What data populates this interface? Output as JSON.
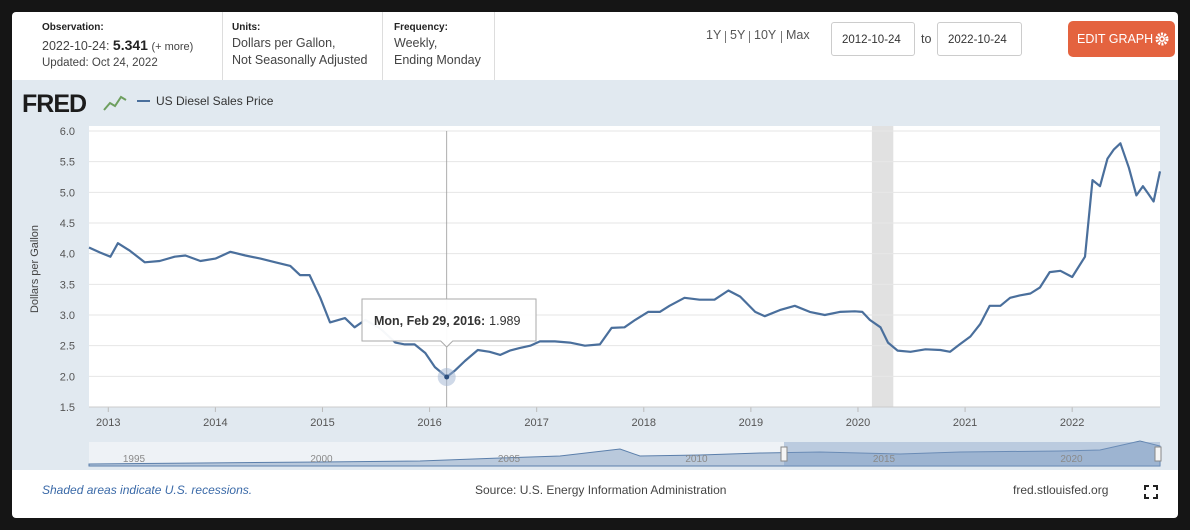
{
  "header": {
    "observation_label": "Observation:",
    "observation_date": "2022-10-24:",
    "more": "(+ more)",
    "updated": "Updated: Oct 24, 2022",
    "units_label": "Units:",
    "units_line1": "Dollars per Gallon,",
    "units_line2": "Not Seasonally Adjusted",
    "frequency_label": "Frequency:",
    "frequency_line1": "Weekly,",
    "frequency_line2": "Ending Monday",
    "ranges": [
      "1Y",
      "5Y",
      "10Y",
      "Max"
    ],
    "date_from": "2012-10-24",
    "to": "to",
    "date_to": "2022-10-24",
    "edit_button": "EDIT GRAPH"
  },
  "logo": "FRED",
  "chart_data": {
    "type": "line",
    "ylabel": "Dollars per Gallon",
    "x": [
      2012.82,
      2012.92,
      2013.02,
      2013.09,
      2013.2,
      2013.34,
      2013.48,
      2013.62,
      2013.72,
      2013.86,
      2014.0,
      2014.14,
      2014.28,
      2014.42,
      2014.56,
      2014.7,
      2014.79,
      2014.88,
      2014.98,
      2015.07,
      2015.21,
      2015.3,
      2015.4,
      2015.54,
      2015.68,
      2015.77,
      2015.86,
      2015.96,
      2016.05,
      2016.16,
      2016.24,
      2016.33,
      2016.45,
      2016.56,
      2016.66,
      2016.75,
      2016.84,
      2016.94,
      2017.03,
      2017.17,
      2017.31,
      2017.45,
      2017.59,
      2017.7,
      2017.82,
      2017.92,
      2018.04,
      2018.15,
      2018.24,
      2018.38,
      2018.52,
      2018.66,
      2018.79,
      2018.9,
      2019.04,
      2019.13,
      2019.27,
      2019.41,
      2019.55,
      2019.69,
      2019.83,
      2019.97,
      2020.04,
      2020.11,
      2020.21,
      2020.28,
      2020.37,
      2020.49,
      2020.63,
      2020.77,
      2020.86,
      2020.95,
      2021.05,
      2021.14,
      2021.23,
      2021.33,
      2021.42,
      2021.51,
      2021.61,
      2021.7,
      2021.79,
      2021.89,
      2022.0,
      2022.12,
      2022.19,
      2022.26,
      2022.33,
      2022.39,
      2022.45,
      2022.53,
      2022.6,
      2022.66,
      2022.71,
      2022.76,
      2022.82
    ],
    "series": [
      {
        "name": "US Diesel Sales Price",
        "color": "#4a6f9c",
        "values": [
          4.1,
          4.02,
          3.95,
          4.17,
          4.05,
          3.86,
          3.88,
          3.95,
          3.97,
          3.88,
          3.92,
          4.03,
          3.97,
          3.92,
          3.86,
          3.8,
          3.65,
          3.65,
          3.28,
          2.88,
          2.95,
          2.8,
          2.92,
          2.78,
          2.55,
          2.52,
          2.52,
          2.38,
          2.15,
          1.989,
          2.1,
          2.25,
          2.43,
          2.4,
          2.35,
          2.42,
          2.46,
          2.5,
          2.57,
          2.57,
          2.55,
          2.5,
          2.52,
          2.79,
          2.8,
          2.92,
          3.05,
          3.05,
          3.15,
          3.28,
          3.25,
          3.25,
          3.4,
          3.3,
          3.05,
          2.98,
          3.08,
          3.15,
          3.05,
          3.0,
          3.05,
          3.06,
          3.05,
          2.92,
          2.8,
          2.55,
          2.42,
          2.4,
          2.44,
          2.43,
          2.4,
          2.52,
          2.65,
          2.85,
          3.15,
          3.15,
          3.28,
          3.32,
          3.35,
          3.45,
          3.7,
          3.72,
          3.62,
          3.95,
          5.2,
          5.1,
          5.55,
          5.7,
          5.8,
          5.4,
          4.95,
          5.1,
          4.98,
          4.85,
          5.341
        ]
      }
    ],
    "xlim": [
      2012.82,
      2022.82
    ],
    "xticks": [
      2013,
      2014,
      2015,
      2016,
      2017,
      2018,
      2019,
      2020,
      2021,
      2022
    ],
    "ylim": [
      1.5,
      6
    ],
    "yticks": [
      1.5,
      {
        "value": 2,
        "label": "2.0"
      },
      2.5,
      {
        "value": 3,
        "label": "3.0"
      },
      3.5,
      {
        "value": 4,
        "label": "4.0"
      },
      4.5,
      {
        "value": 5,
        "label": "5.0"
      },
      5.5,
      {
        "value": 6,
        "label": "6.0"
      }
    ],
    "grid": true,
    "recessions": [
      [
        2020.13,
        2020.33
      ]
    ],
    "recession_color": "#e1e1e1",
    "tooltip": {
      "label": "Mon, Feb 29, 2016:",
      "index": 29
    },
    "navigator_labels": [
      "1995",
      "2000",
      "2005",
      "2010",
      "2015",
      "2020"
    ]
  },
  "footer": {
    "recession_note": "Shaded areas indicate U.S. recessions.",
    "source": "Source: U.S. Energy Information Administration",
    "site": "fred.stlouisfed.org"
  }
}
